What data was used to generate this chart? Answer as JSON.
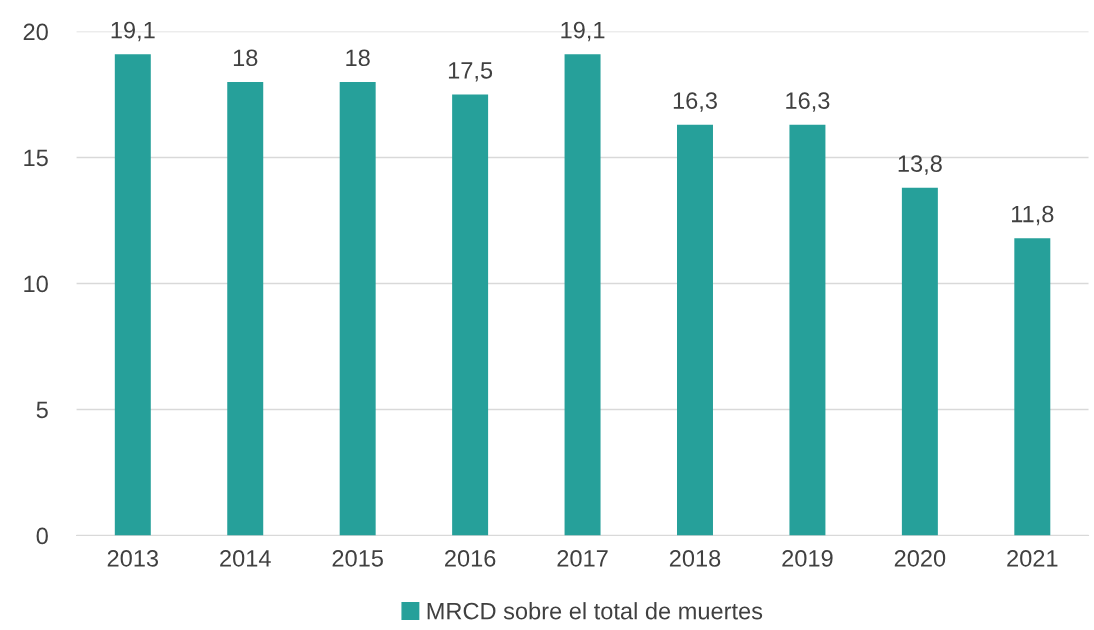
{
  "chart_data": {
    "type": "bar",
    "categories": [
      "2013",
      "2014",
      "2015",
      "2016",
      "2017",
      "2018",
      "2019",
      "2020",
      "2021"
    ],
    "series": [
      {
        "name": "MRCD sobre el total de muertes",
        "color": "#26a09a",
        "values": [
          19.1,
          18,
          18,
          17.5,
          19.1,
          16.3,
          16.3,
          13.8,
          11.8
        ],
        "value_labels": [
          "19,1",
          "18",
          "18",
          "17,5",
          "19,1",
          "16,3",
          "16,3",
          "13,8",
          "11,8"
        ]
      }
    ],
    "ylim": [
      0,
      20
    ],
    "yticks": [
      0,
      5,
      10,
      15,
      20
    ],
    "grid": "y",
    "legend": "bottom"
  }
}
